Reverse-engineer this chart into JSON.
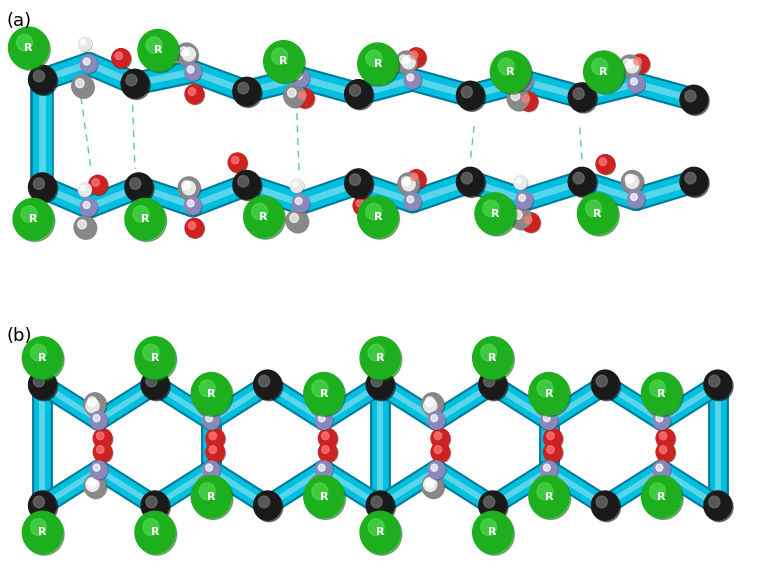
{
  "bg_color": "#ffffff",
  "label_a": "(a)",
  "label_b": "(b)",
  "label_fontsize": 13,
  "cyan_color": "#00BFDF",
  "cyan_dark": "#007A9A",
  "cyan_light": "#7FDFEF",
  "green_color": "#1DAF1D",
  "green_dark": "#0D6F0D",
  "black_color": "#1A1A1A",
  "red_color": "#CC2222",
  "red_dark": "#881111",
  "white_atom": "#E8E8E8",
  "gray_atom": "#888888",
  "gray_dark": "#555555",
  "purple_atom": "#8888BB",
  "purple_dark": "#555580",
  "R_label": "R",
  "R_fontsize": 8,
  "dashed_color": "#55CCAA",
  "tube_lw_a": 14,
  "tube_lw_b": 12,
  "atom_black_r": 0.18,
  "atom_gray_r": 0.14,
  "atom_purple_r": 0.11,
  "atom_red_r": 0.12,
  "atom_white_r": 0.085,
  "R_size": 0.26
}
